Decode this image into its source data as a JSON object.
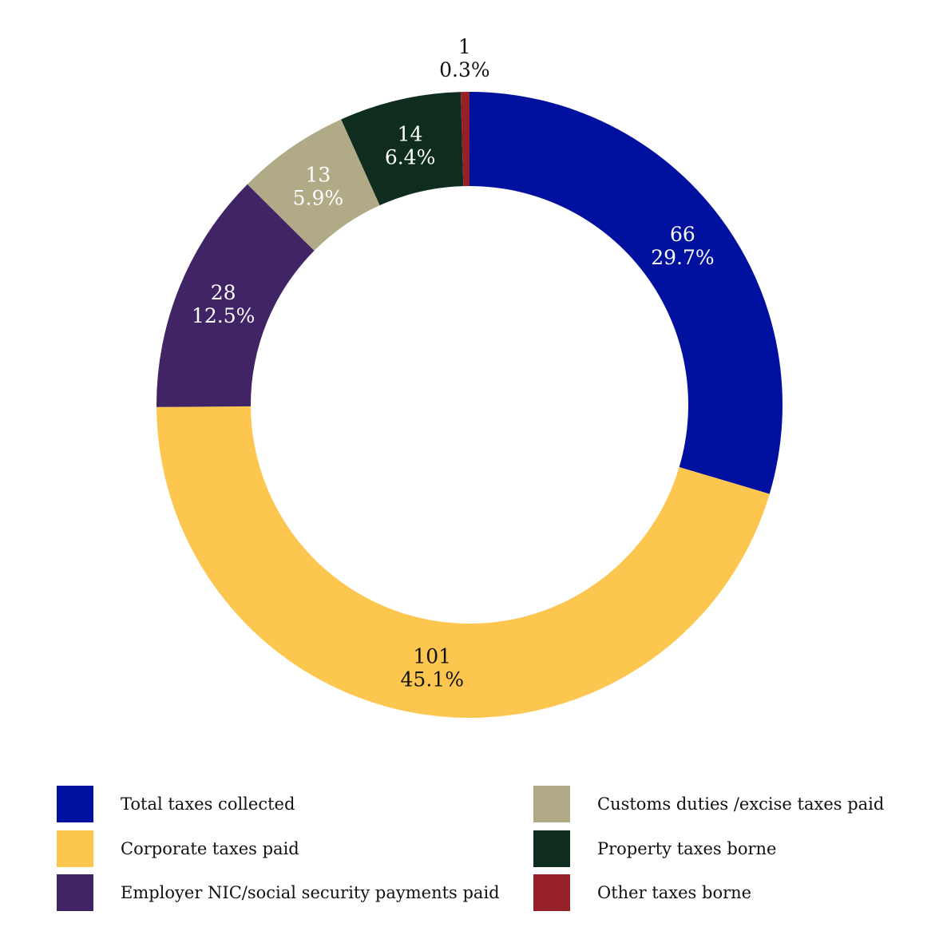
{
  "chart_data": {
    "type": "pie",
    "variant": "donut",
    "categories": [
      "Total taxes collected",
      "Corporate taxes paid",
      "Employer NIC/social security payments paid",
      "Customs duties /excise taxes paid",
      "Property taxes borne",
      "Other taxes borne"
    ],
    "values": [
      66,
      101,
      28,
      13,
      14,
      1
    ],
    "percent_labels": [
      "29.7%",
      "45.1%",
      "12.5%",
      "5.9%",
      "6.4%",
      "0.3%"
    ],
    "value_labels": [
      "66",
      "101",
      "28",
      "13",
      "14",
      "1"
    ],
    "colors": [
      "#0011A0",
      "#FDC64F",
      "#412465",
      "#B0AB86",
      "#0F2D1F",
      "#962027"
    ],
    "label_colors": [
      "#ffffff",
      "#111111",
      "#ffffff",
      "#ffffff",
      "#ffffff",
      "#111111"
    ],
    "label_placement": [
      "inside",
      "inside",
      "inside",
      "inside",
      "inside",
      "outside"
    ],
    "legend_position": "bottom",
    "title": "",
    "start_angle_deg": 0,
    "direction": "clockwise"
  },
  "legend": {
    "items": [
      {
        "label": "Total taxes collected",
        "color": "#0011A0"
      },
      {
        "label": "Corporate taxes paid",
        "color": "#FDC64F"
      },
      {
        "label": "Employer NIC/social security payments paid",
        "color": "#412465"
      },
      {
        "label": "Customs duties /excise taxes paid",
        "color": "#B0AB86"
      },
      {
        "label": "Property taxes borne",
        "color": "#0F2D1F"
      },
      {
        "label": "Other taxes borne",
        "color": "#962027"
      }
    ]
  }
}
